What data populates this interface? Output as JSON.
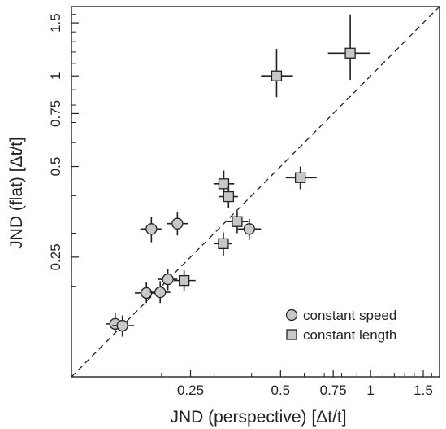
{
  "chart_data": {
    "type": "scatter",
    "xlabel": "JND (perspective) [Δt/t]",
    "ylabel": "JND (flat) [Δt/t]",
    "x_scale": "log",
    "y_scale": "log",
    "xlim": [
      0.1,
      1.7
    ],
    "ylim": [
      0.1,
      1.7
    ],
    "x_ticks": [
      {
        "value": 0.25,
        "label": "0.25"
      },
      {
        "value": 0.5,
        "label": "0.5"
      },
      {
        "value": 0.75,
        "label": "0.75"
      },
      {
        "value": 1,
        "label": "1"
      },
      {
        "value": 1.5,
        "label": "1.5"
      }
    ],
    "y_ticks": [
      {
        "value": 0.25,
        "label": "0.25"
      },
      {
        "value": 0.5,
        "label": "0.5"
      },
      {
        "value": 0.75,
        "label": "0.75"
      },
      {
        "value": 1,
        "label": "1"
      },
      {
        "value": 1.5,
        "label": "1.5"
      }
    ],
    "minor_ticks": [
      0.2,
      0.3,
      0.4,
      0.6,
      0.7,
      0.8,
      0.9,
      1.1,
      1.2,
      1.3,
      1.4,
      1.6,
      1.7
    ],
    "reference_line": "y = x (dashed)",
    "grid": false,
    "legend": {
      "position": "bottom-right",
      "entries": [
        {
          "label": "constant speed",
          "marker": "circle"
        },
        {
          "label": "constant length",
          "marker": "square"
        }
      ]
    },
    "series": [
      {
        "name": "constant speed",
        "marker": "circle",
        "color": "#c8c8c8",
        "points": [
          {
            "x": 0.14,
            "y": 0.15,
            "x_err": [
              0.13,
              0.152
            ],
            "y_err": [
              0.14,
              0.163
            ]
          },
          {
            "x": 0.148,
            "y": 0.148,
            "x_err": [
              0.137,
              0.162
            ],
            "y_err": [
              0.136,
              0.16
            ]
          },
          {
            "x": 0.178,
            "y": 0.19,
            "x_err": [
              0.163,
              0.194
            ],
            "y_err": [
              0.176,
              0.206
            ]
          },
          {
            "x": 0.198,
            "y": 0.191,
            "x_err": [
              0.183,
              0.214
            ],
            "y_err": [
              0.176,
              0.208
            ]
          },
          {
            "x": 0.21,
            "y": 0.211,
            "x_err": [
              0.194,
              0.226
            ],
            "y_err": [
              0.194,
              0.228
            ]
          },
          {
            "x": 0.185,
            "y": 0.31,
            "x_err": [
              0.17,
              0.2
            ],
            "y_err": [
              0.28,
              0.34
            ]
          },
          {
            "x": 0.226,
            "y": 0.323,
            "x_err": [
              0.208,
              0.245
            ],
            "y_err": [
              0.295,
              0.352
            ]
          },
          {
            "x": 0.393,
            "y": 0.31,
            "x_err": [
              0.36,
              0.43
            ],
            "y_err": [
              0.285,
              0.335
            ]
          }
        ]
      },
      {
        "name": "constant length",
        "marker": "square",
        "color": "#c8c8c8",
        "points": [
          {
            "x": 0.238,
            "y": 0.209,
            "x_err": [
              0.22,
              0.26
            ],
            "y_err": [
              0.193,
              0.226
            ]
          },
          {
            "x": 0.322,
            "y": 0.277,
            "x_err": [
              0.3,
              0.345
            ],
            "y_err": [
              0.252,
              0.302
            ]
          },
          {
            "x": 0.323,
            "y": 0.438,
            "x_err": [
              0.3,
              0.35
            ],
            "y_err": [
              0.395,
              0.485
            ]
          },
          {
            "x": 0.335,
            "y": 0.397,
            "x_err": [
              0.31,
              0.36
            ],
            "y_err": [
              0.365,
              0.43
            ]
          },
          {
            "x": 0.358,
            "y": 0.328,
            "x_err": [
              0.33,
              0.39
            ],
            "y_err": [
              0.3,
              0.356
            ]
          },
          {
            "x": 0.582,
            "y": 0.459,
            "x_err": [
              0.52,
              0.66
            ],
            "y_err": [
              0.42,
              0.5
            ]
          },
          {
            "x": 0.485,
            "y": 1.0,
            "x_err": [
              0.43,
              0.55
            ],
            "y_err": [
              0.85,
              1.23
            ]
          },
          {
            "x": 0.855,
            "y": 1.19,
            "x_err": [
              0.72,
              1.0
            ],
            "y_err": [
              0.97,
              1.6
            ]
          }
        ]
      }
    ]
  }
}
